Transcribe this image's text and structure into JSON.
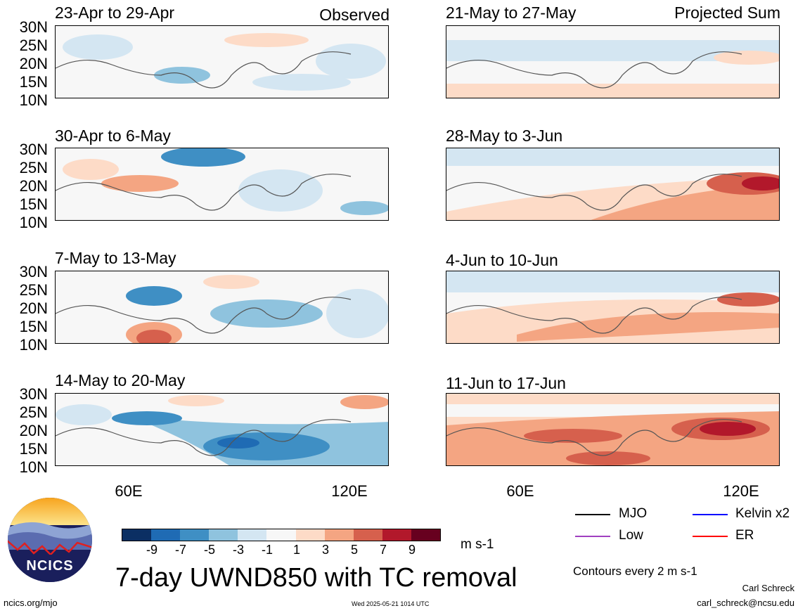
{
  "labels": {
    "observed": "Observed",
    "projected": "Projected Sum"
  },
  "panels_left": [
    "23-Apr to 29-Apr",
    "30-Apr to 6-May",
    "7-May to 13-May",
    "14-May to 20-May"
  ],
  "panels_right": [
    "21-May to 27-May",
    "28-May to 3-Jun",
    "4-Jun to 10-Jun",
    "11-Jun to 17-Jun"
  ],
  "y_ticks": [
    "30N",
    "25N",
    "20N",
    "15N",
    "10N"
  ],
  "x_ticks": [
    "60E",
    "120E"
  ],
  "colorbar": {
    "colors": [
      "#0b2f63",
      "#1f6bb4",
      "#3f8fc4",
      "#8fc3de",
      "#d4e6f2",
      "#f7f7f7",
      "#fddbc7",
      "#f4a582",
      "#d6604d",
      "#b2182b",
      "#67001f"
    ],
    "ticks": [
      "-9",
      "-7",
      "-5",
      "-3",
      "-1",
      "1",
      "3",
      "5",
      "7",
      "9"
    ],
    "unit": "m s-1"
  },
  "title": "7-day UWND850 with TC removal",
  "legend": {
    "mjo": "MJO",
    "kelvin": "Kelvin x2",
    "low": "Low",
    "er": "ER",
    "contours": "Contours every 2 m s-1",
    "mjo_color": "#000000",
    "kelvin_color": "#0000ff",
    "low_color": "#a040c0",
    "er_color": "#ff0000"
  },
  "logo": {
    "text": "NCICS"
  },
  "footer": {
    "site": "ncics.org/mjo",
    "timestamp": "Wed 2025-05-21 1014 UTC",
    "author": "Carl Schreck",
    "email": "carl_schreck@ncsu.edu"
  }
}
